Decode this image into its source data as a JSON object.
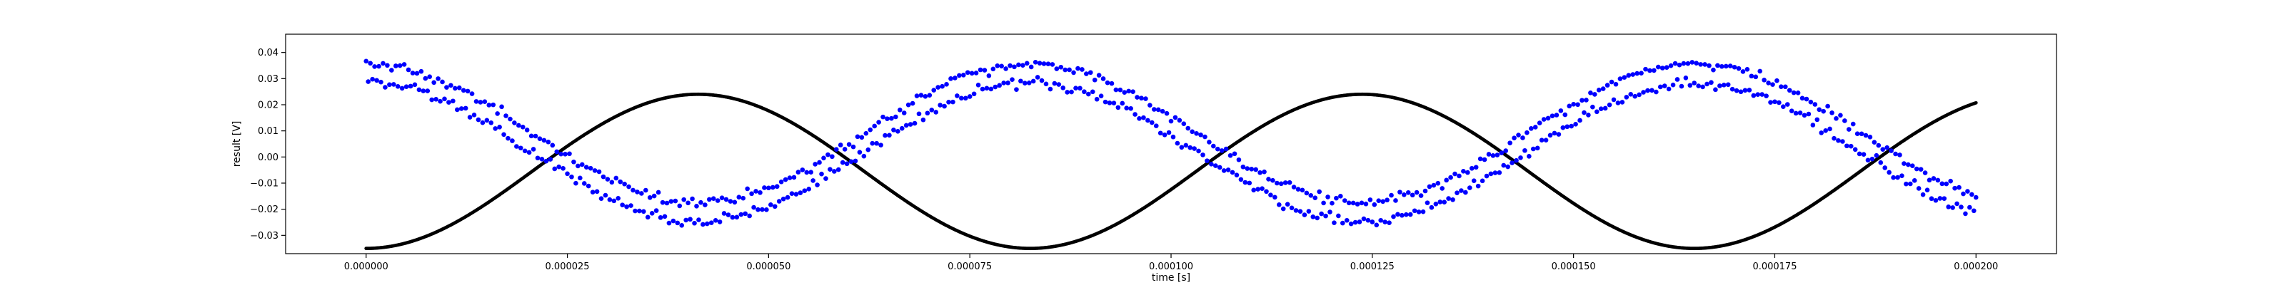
{
  "chart_data": {
    "type": "scatter",
    "title": "",
    "xlabel": "time [s]",
    "ylabel": "result [V]",
    "xlim": [
      -1e-05,
      0.00021
    ],
    "ylim": [
      -0.037,
      0.047
    ],
    "x_ticks": [
      "0.000000",
      "0.000025",
      "0.000050",
      "0.000075",
      "0.000100",
      "0.000125",
      "0.000150",
      "0.000175",
      "0.000200"
    ],
    "y_ticks": [
      "−0.03",
      "−0.02",
      "−0.01",
      "0.00",
      "0.01",
      "0.02",
      "0.03",
      "0.04"
    ],
    "grid": false,
    "legend": "none",
    "series": [
      {
        "color": "#000000",
        "marker": "dot-dense",
        "model": {
          "shape": "cosine",
          "offset": -0.0055,
          "amplitude": 0.0295,
          "period_s": 8.25e-05,
          "trough_at_s": 0.0,
          "x_start": 0.0,
          "x_end": 0.0002
        },
        "points_sampled": [
          [
            0.0,
            -0.0335
          ],
          [
            2.06e-05,
            -0.0055
          ],
          [
            3.75e-05,
            0.024
          ],
          [
            7.75e-05,
            -0.035
          ],
          [
            0.0001,
            -0.0055
          ],
          [
            0.000121,
            0.024
          ],
          [
            0.000163,
            -0.035
          ],
          [
            0.000185,
            -0.0055
          ],
          [
            0.0002,
            0.0225
          ]
        ]
      },
      {
        "color": "#0000ff",
        "marker": "dot",
        "model": {
          "shape": "cosine-noisy",
          "offset": 0.0055,
          "amplitude": 0.0265,
          "period_s": 8.25e-05,
          "peak_at_s": 0.0,
          "band_halfwidth": 0.0045,
          "noise": 0.0015,
          "x_start": 0.0,
          "x_end": 0.0002
        },
        "points_sampled": [
          [
            0.0,
            0.032
          ],
          [
            2.06e-05,
            -0.002
          ],
          [
            3.75e-05,
            -0.024
          ],
          [
            5.75e-05,
            0.006
          ],
          [
            7.8e-05,
            0.035
          ],
          [
            0.0001,
            0.005
          ],
          [
            0.000121,
            -0.022
          ],
          [
            0.000142,
            0.007
          ],
          [
            0.00016,
            0.037
          ],
          [
            0.000185,
            -0.002
          ],
          [
            0.0002,
            -0.024
          ]
        ]
      }
    ]
  }
}
